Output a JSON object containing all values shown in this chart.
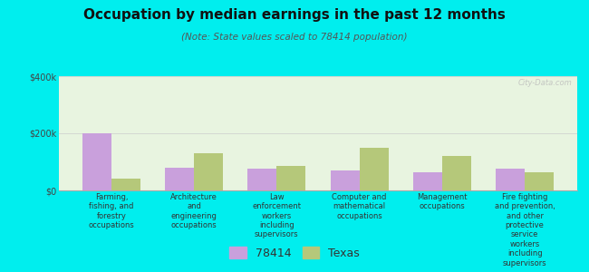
{
  "title": "Occupation by median earnings in the past 12 months",
  "subtitle": "(Note: State values scaled to 78414 population)",
  "categories": [
    "Farming,\nfishing, and\nforestry\noccupations",
    "Architecture\nand\nengineering\noccupations",
    "Law\nenforcement\nworkers\nincluding\nsupervisors",
    "Computer and\nmathematical\noccupations",
    "Management\noccupations",
    "Fire fighting\nand prevention,\nand other\nprotective\nservice\nworkers\nincluding\nsupervisors"
  ],
  "values_78414": [
    200000,
    80000,
    75000,
    70000,
    65000,
    75000
  ],
  "values_texas": [
    40000,
    130000,
    85000,
    150000,
    120000,
    65000
  ],
  "color_78414": "#c9a0dc",
  "color_texas": "#b5c87a",
  "ylim": [
    0,
    400000
  ],
  "yticks": [
    0,
    200000,
    400000
  ],
  "ytick_labels": [
    "$0",
    "$200k",
    "$400k"
  ],
  "legend_labels": [
    "78414",
    "Texas"
  ],
  "background_color": "#00eeee",
  "plot_bg": "#e8f4e0",
  "bar_width": 0.35,
  "watermark": "City-Data.com"
}
